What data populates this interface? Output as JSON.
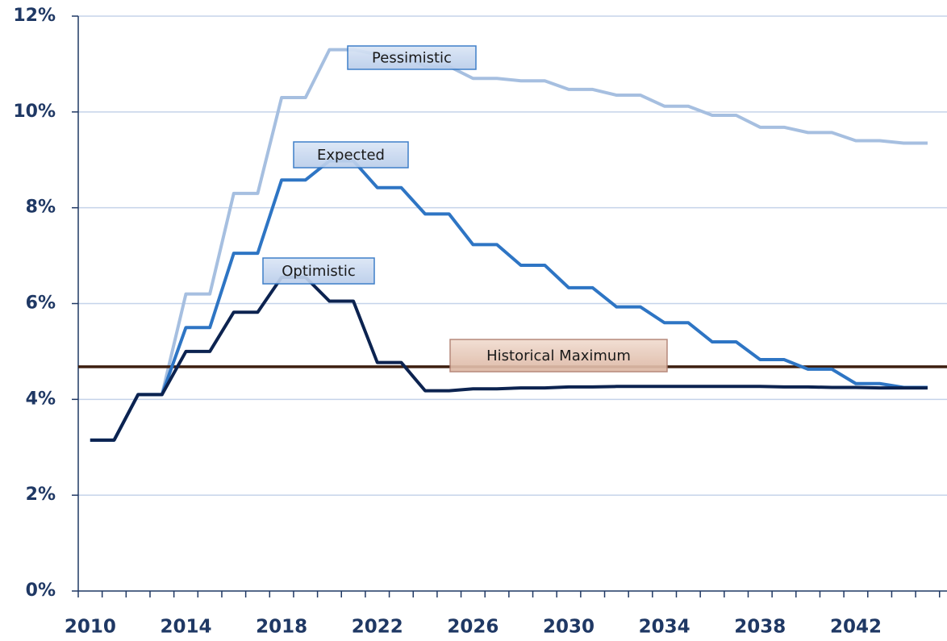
{
  "chart_data": {
    "type": "line",
    "categories": [
      "2010",
      null,
      null,
      null,
      "2014",
      null,
      null,
      null,
      "2018",
      null,
      null,
      null,
      "2022",
      null,
      null,
      null,
      "2026",
      null,
      null,
      null,
      "2030",
      null,
      null,
      null,
      "2034",
      null,
      null,
      null,
      "2038",
      null,
      null,
      null,
      "2042",
      null,
      null,
      null
    ],
    "series": [
      {
        "name": "Pessimistic",
        "color": "#a6bfe0",
        "values": [
          3.15,
          3.15,
          4.1,
          4.1,
          6.2,
          6.2,
          8.3,
          8.3,
          10.3,
          10.3,
          11.3,
          11.3,
          11.2,
          11.2,
          10.95,
          10.95,
          10.7,
          10.7,
          10.65,
          10.65,
          10.47,
          10.47,
          10.35,
          10.35,
          10.12,
          10.12,
          9.93,
          9.93,
          9.68,
          9.68,
          9.57,
          9.57,
          9.4,
          9.4,
          9.35,
          9.35
        ]
      },
      {
        "name": "Expected",
        "color": "#2e75c4",
        "values": [
          3.15,
          3.15,
          4.1,
          4.1,
          5.5,
          5.5,
          7.05,
          7.05,
          8.58,
          8.58,
          8.98,
          8.98,
          8.42,
          8.42,
          7.87,
          7.87,
          7.23,
          7.23,
          6.8,
          6.8,
          6.33,
          6.33,
          5.93,
          5.93,
          5.6,
          5.6,
          5.2,
          5.2,
          4.83,
          4.83,
          4.63,
          4.63,
          4.33,
          4.33,
          4.25,
          4.25
        ]
      },
      {
        "name": "Optimistic",
        "color": "#0c2350",
        "values": [
          3.15,
          3.15,
          4.1,
          4.1,
          5.0,
          5.0,
          5.82,
          5.82,
          6.55,
          6.55,
          6.05,
          6.05,
          4.77,
          4.77,
          4.18,
          4.18,
          4.22,
          4.22,
          4.24,
          4.24,
          4.26,
          4.26,
          4.27,
          4.27,
          4.27,
          4.27,
          4.27,
          4.27,
          4.27,
          4.26,
          4.26,
          4.25,
          4.25,
          4.24,
          4.24,
          4.24
        ]
      }
    ],
    "reference_line": {
      "name": "Historical Maximum",
      "value": 4.68,
      "color": "#3d1f10"
    },
    "ylim": [
      0,
      12
    ],
    "yticks": [
      {
        "value": 0,
        "label": "0%"
      },
      {
        "value": 2,
        "label": "2%"
      },
      {
        "value": 4,
        "label": "4%"
      },
      {
        "value": 6,
        "label": "6%"
      },
      {
        "value": 8,
        "label": "8%"
      },
      {
        "value": 10,
        "label": "10%"
      },
      {
        "value": 12,
        "label": "12%"
      }
    ],
    "grid": true
  }
}
